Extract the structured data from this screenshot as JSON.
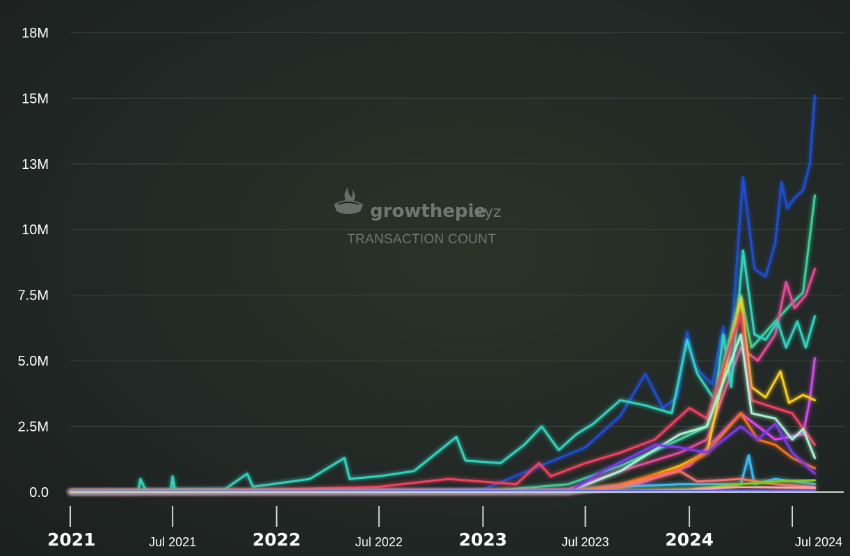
{
  "watermark": {
    "brand": "growthepie",
    "brand_suffix": ".xyz",
    "subtitle": "TRANSACTION COUNT"
  },
  "colors": {
    "background": "#1e2322",
    "grid": "#3c4442",
    "axis": "#cfd6d3"
  },
  "chart_data": {
    "type": "line",
    "title": "",
    "ylabel": "",
    "xlabel": "",
    "grid": true,
    "legend": "none",
    "x_range": [
      "2021-01-01",
      "2024-09-30"
    ],
    "ylim": [
      0,
      18000000
    ],
    "y_ticks": [
      {
        "value": 0,
        "label": "0.0"
      },
      {
        "value": 2500000,
        "label": "2.5M"
      },
      {
        "value": 5000000,
        "label": "5.0M"
      },
      {
        "value": 7500000,
        "label": "7.5M"
      },
      {
        "value": 10000000,
        "label": "10M"
      },
      {
        "value": 12500000,
        "label": "13M"
      },
      {
        "value": 15000000,
        "label": "15M"
      },
      {
        "value": 17500000,
        "label": "18M"
      }
    ],
    "x_ticks": [
      {
        "date": "2021-01-01",
        "label": "2021",
        "major": true
      },
      {
        "date": "2021-07-01",
        "label": "Jul 2021",
        "major": false
      },
      {
        "date": "2022-01-01",
        "label": "2022",
        "major": true
      },
      {
        "date": "2022-07-01",
        "label": "Jul 2022",
        "major": false
      },
      {
        "date": "2023-01-01",
        "label": "2023",
        "major": true
      },
      {
        "date": "2023-07-01",
        "label": "Jul 2023",
        "major": false
      },
      {
        "date": "2024-01-01",
        "label": "2024",
        "major": true
      },
      {
        "date": "2024-07-01",
        "label": "Jul 2024",
        "major": false
      }
    ],
    "series": [
      {
        "color": "#1d4ed8",
        "points": [
          [
            "2021-01-01",
            0
          ],
          [
            "2022-06-01",
            50000
          ],
          [
            "2023-01-01",
            100000
          ],
          [
            "2023-04-01",
            900000
          ],
          [
            "2023-07-01",
            1700000
          ],
          [
            "2023-09-01",
            2900000
          ],
          [
            "2023-10-15",
            4500000
          ],
          [
            "2023-11-15",
            3200000
          ],
          [
            "2023-12-10",
            3600000
          ],
          [
            "2023-12-28",
            6100000
          ],
          [
            "2024-01-10",
            4800000
          ],
          [
            "2024-02-10",
            4100000
          ],
          [
            "2024-03-01",
            6300000
          ],
          [
            "2024-03-10",
            4400000
          ],
          [
            "2024-04-05",
            12000000
          ],
          [
            "2024-04-25",
            8500000
          ],
          [
            "2024-05-15",
            8200000
          ],
          [
            "2024-06-01",
            9500000
          ],
          [
            "2024-06-12",
            11800000
          ],
          [
            "2024-06-22",
            10800000
          ],
          [
            "2024-07-05",
            11200000
          ],
          [
            "2024-07-20",
            11500000
          ],
          [
            "2024-08-01",
            12500000
          ],
          [
            "2024-08-10",
            15100000
          ]
        ]
      },
      {
        "color": "#34d399",
        "points": [
          [
            "2021-01-01",
            0
          ],
          [
            "2022-06-01",
            0
          ],
          [
            "2023-01-01",
            20000
          ],
          [
            "2023-06-01",
            300000
          ],
          [
            "2023-09-01",
            1000000
          ],
          [
            "2023-12-15",
            2000000
          ],
          [
            "2024-02-01",
            2500000
          ],
          [
            "2024-04-01",
            7500000
          ],
          [
            "2024-04-20",
            5500000
          ],
          [
            "2024-06-01",
            6500000
          ],
          [
            "2024-07-01",
            7200000
          ],
          [
            "2024-07-20",
            7600000
          ],
          [
            "2024-08-10",
            11300000
          ]
        ]
      },
      {
        "color": "#ec4899",
        "points": [
          [
            "2021-01-01",
            0
          ],
          [
            "2023-01-01",
            0
          ],
          [
            "2023-06-01",
            100000
          ],
          [
            "2023-09-01",
            800000
          ],
          [
            "2023-12-15",
            1500000
          ],
          [
            "2024-02-01",
            2000000
          ],
          [
            "2024-04-01",
            5500000
          ],
          [
            "2024-05-01",
            5000000
          ],
          [
            "2024-06-01",
            6000000
          ],
          [
            "2024-06-20",
            8000000
          ],
          [
            "2024-07-05",
            7000000
          ],
          [
            "2024-07-25",
            7500000
          ],
          [
            "2024-08-10",
            8500000
          ]
        ]
      },
      {
        "color": "#2dd4bf",
        "points": [
          [
            "2021-01-01",
            0
          ],
          [
            "2021-05-01",
            0
          ],
          [
            "2021-05-05",
            500000
          ],
          [
            "2021-05-15",
            50000
          ],
          [
            "2021-06-28",
            50000
          ],
          [
            "2021-07-01",
            600000
          ],
          [
            "2021-07-05",
            100000
          ],
          [
            "2021-10-01",
            100000
          ],
          [
            "2021-11-10",
            700000
          ],
          [
            "2021-11-20",
            200000
          ],
          [
            "2022-03-01",
            500000
          ],
          [
            "2022-05-01",
            1300000
          ],
          [
            "2022-05-10",
            500000
          ],
          [
            "2022-07-01",
            600000
          ],
          [
            "2022-09-01",
            800000
          ],
          [
            "2022-11-15",
            2100000
          ],
          [
            "2022-12-01",
            1200000
          ],
          [
            "2023-02-01",
            1100000
          ],
          [
            "2023-03-15",
            1800000
          ],
          [
            "2023-04-15",
            2500000
          ],
          [
            "2023-05-15",
            1600000
          ],
          [
            "2023-06-15",
            2200000
          ],
          [
            "2023-07-15",
            2600000
          ],
          [
            "2023-09-01",
            3500000
          ],
          [
            "2023-10-15",
            3300000
          ],
          [
            "2023-12-01",
            3000000
          ],
          [
            "2023-12-28",
            5800000
          ],
          [
            "2024-01-15",
            4500000
          ],
          [
            "2024-02-15",
            3500000
          ],
          [
            "2024-03-01",
            6000000
          ],
          [
            "2024-03-15",
            4000000
          ],
          [
            "2024-04-05",
            9200000
          ],
          [
            "2024-04-25",
            6000000
          ],
          [
            "2024-05-15",
            5800000
          ],
          [
            "2024-06-05",
            6500000
          ],
          [
            "2024-06-20",
            5500000
          ],
          [
            "2024-07-10",
            6500000
          ],
          [
            "2024-07-25",
            5500000
          ],
          [
            "2024-08-10",
            6700000
          ]
        ]
      },
      {
        "color": "#d946ef",
        "points": [
          [
            "2021-01-01",
            0
          ],
          [
            "2023-06-01",
            0
          ],
          [
            "2023-10-01",
            300000
          ],
          [
            "2024-01-01",
            1000000
          ],
          [
            "2024-04-01",
            3000000
          ],
          [
            "2024-06-01",
            2000000
          ],
          [
            "2024-07-20",
            2200000
          ],
          [
            "2024-08-01",
            3500000
          ],
          [
            "2024-08-10",
            5100000
          ]
        ]
      },
      {
        "color": "#facc15",
        "points": [
          [
            "2021-01-01",
            0
          ],
          [
            "2023-06-01",
            0
          ],
          [
            "2023-09-01",
            200000
          ],
          [
            "2023-12-15",
            1000000
          ],
          [
            "2024-02-01",
            1500000
          ],
          [
            "2024-04-01",
            7400000
          ],
          [
            "2024-04-20",
            4000000
          ],
          [
            "2024-05-15",
            3600000
          ],
          [
            "2024-06-10",
            4600000
          ],
          [
            "2024-06-25",
            3400000
          ],
          [
            "2024-07-20",
            3700000
          ],
          [
            "2024-08-10",
            3500000
          ]
        ]
      },
      {
        "color": "#f43f5e",
        "points": [
          [
            "2021-01-01",
            0
          ],
          [
            "2021-06-01",
            0
          ],
          [
            "2022-01-01",
            100000
          ],
          [
            "2022-07-01",
            200000
          ],
          [
            "2022-11-01",
            500000
          ],
          [
            "2023-03-01",
            300000
          ],
          [
            "2023-04-10",
            1100000
          ],
          [
            "2023-05-01",
            600000
          ],
          [
            "2023-07-01",
            1100000
          ],
          [
            "2023-09-01",
            1500000
          ],
          [
            "2023-11-01",
            2000000
          ],
          [
            "2024-01-01",
            3200000
          ],
          [
            "2024-02-01",
            2800000
          ],
          [
            "2024-04-01",
            6800000
          ],
          [
            "2024-04-20",
            3500000
          ],
          [
            "2024-06-01",
            3200000
          ],
          [
            "2024-07-01",
            3000000
          ],
          [
            "2024-08-10",
            1800000
          ]
        ]
      },
      {
        "color": "#a7f3d0",
        "points": [
          [
            "2021-01-01",
            0
          ],
          [
            "2023-06-01",
            0
          ],
          [
            "2023-09-01",
            800000
          ],
          [
            "2023-12-15",
            2200000
          ],
          [
            "2024-02-01",
            2500000
          ],
          [
            "2024-04-01",
            6000000
          ],
          [
            "2024-04-20",
            3000000
          ],
          [
            "2024-06-01",
            2800000
          ],
          [
            "2024-07-01",
            2000000
          ],
          [
            "2024-07-20",
            2400000
          ],
          [
            "2024-08-10",
            1300000
          ]
        ]
      },
      {
        "color": "#f97316",
        "points": [
          [
            "2021-01-01",
            0
          ],
          [
            "2023-06-01",
            0
          ],
          [
            "2023-09-01",
            300000
          ],
          [
            "2023-12-15",
            900000
          ],
          [
            "2024-02-01",
            1500000
          ],
          [
            "2024-04-01",
            3000000
          ],
          [
            "2024-05-01",
            2000000
          ],
          [
            "2024-06-01",
            1800000
          ],
          [
            "2024-07-01",
            1300000
          ],
          [
            "2024-08-10",
            900000
          ]
        ]
      },
      {
        "color": "#7c3aed",
        "points": [
          [
            "2021-01-01",
            0
          ],
          [
            "2023-06-01",
            0
          ],
          [
            "2023-08-01",
            800000
          ],
          [
            "2023-11-01",
            1800000
          ],
          [
            "2023-12-15",
            1700000
          ],
          [
            "2024-02-01",
            1500000
          ],
          [
            "2024-04-01",
            2500000
          ],
          [
            "2024-05-01",
            2000000
          ],
          [
            "2024-06-01",
            2600000
          ],
          [
            "2024-07-01",
            1500000
          ],
          [
            "2024-08-10",
            700000
          ]
        ]
      },
      {
        "color": "#38bdf8",
        "points": [
          [
            "2021-01-01",
            0
          ],
          [
            "2023-06-01",
            0
          ],
          [
            "2023-09-01",
            200000
          ],
          [
            "2023-12-15",
            300000
          ],
          [
            "2024-04-01",
            300000
          ],
          [
            "2024-04-15",
            1400000
          ],
          [
            "2024-04-25",
            300000
          ],
          [
            "2024-06-01",
            500000
          ],
          [
            "2024-08-10",
            300000
          ]
        ]
      },
      {
        "color": "#f87171",
        "points": [
          [
            "2021-01-01",
            0
          ],
          [
            "2023-06-01",
            0
          ],
          [
            "2023-09-01",
            200000
          ],
          [
            "2023-12-15",
            800000
          ],
          [
            "2024-01-15",
            400000
          ],
          [
            "2024-04-01",
            500000
          ],
          [
            "2024-06-01",
            300000
          ],
          [
            "2024-08-10",
            200000
          ]
        ]
      },
      {
        "color": "#84cc16",
        "points": [
          [
            "2021-01-01",
            0
          ],
          [
            "2023-06-01",
            0
          ],
          [
            "2024-01-01",
            100000
          ],
          [
            "2024-04-01",
            300000
          ],
          [
            "2024-06-01",
            400000
          ],
          [
            "2024-08-10",
            450000
          ]
        ]
      },
      {
        "color": "#fda4af",
        "points": [
          [
            "2021-01-01",
            0
          ],
          [
            "2023-06-01",
            0
          ],
          [
            "2024-01-01",
            80000
          ],
          [
            "2024-04-01",
            200000
          ],
          [
            "2024-08-10",
            150000
          ]
        ]
      },
      {
        "color": "#6366f1",
        "points": [
          [
            "2021-01-01",
            0
          ],
          [
            "2022-01-01",
            20000
          ],
          [
            "2023-01-01",
            40000
          ],
          [
            "2024-01-01",
            60000
          ],
          [
            "2024-08-10",
            80000
          ]
        ]
      }
    ]
  }
}
